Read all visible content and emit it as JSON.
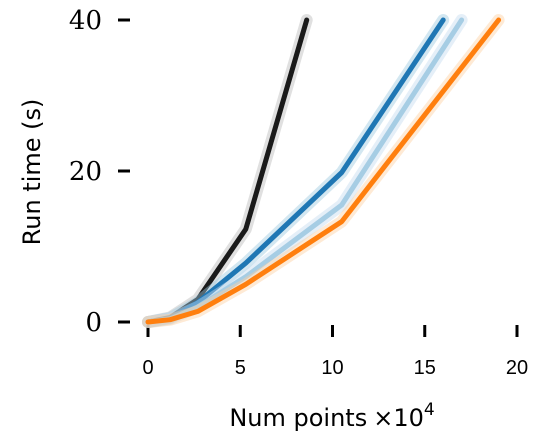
{
  "chart_data": {
    "type": "line",
    "title": "",
    "xlabel": "Num points",
    "xlabel_multiplier": "×10",
    "xlabel_exponent": "4",
    "ylabel": "Run time (s)",
    "xlim": [
      0,
      20
    ],
    "ylim": [
      0,
      40
    ],
    "xticks": [
      0,
      5,
      10,
      15,
      20
    ],
    "xtick_labels": [
      "0",
      "5",
      "10",
      "15",
      "20"
    ],
    "yticks": [
      0,
      20,
      40
    ],
    "ytick_labels": [
      "0",
      "20",
      "40"
    ],
    "grid": false,
    "legend": "none",
    "series": [
      {
        "color": "#1a1a1a",
        "band": "#bbbbbb",
        "x": [
          0,
          1.2,
          2.7,
          5.3,
          8.6
        ],
        "y": [
          0,
          0.6,
          3.0,
          12.3,
          40
        ]
      },
      {
        "color": "#1f77b4",
        "band": "#9ecae1",
        "x": [
          0,
          1.2,
          2.7,
          5.3,
          10.5,
          16
        ],
        "y": [
          0,
          0.5,
          2.6,
          7.8,
          19.8,
          40
        ]
      },
      {
        "color": "#a6cde4",
        "band": "#c6dbef",
        "x": [
          0,
          1.2,
          2.7,
          5.3,
          10.5,
          17
        ],
        "y": [
          0,
          0.4,
          2.0,
          6.0,
          15.5,
          40
        ]
      },
      {
        "color": "#ff7f0e",
        "band": "#fdd0a2",
        "x": [
          0,
          1.2,
          2.7,
          5.3,
          10.5,
          19
        ],
        "y": [
          0,
          0.3,
          1.4,
          5.0,
          13.3,
          40
        ]
      }
    ]
  }
}
